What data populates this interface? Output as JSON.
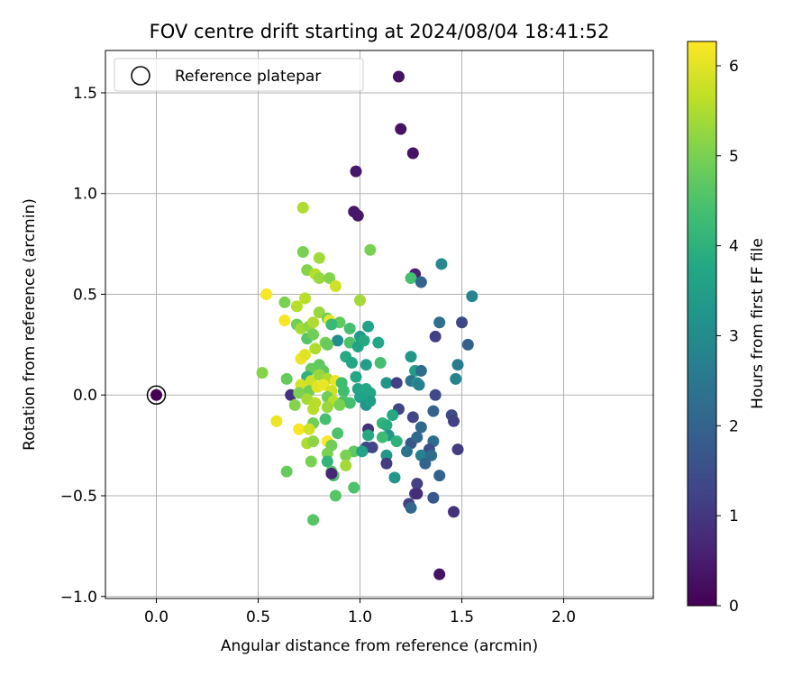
{
  "chart_data": {
    "type": "scatter",
    "title": "FOV centre drift starting at 2024/08/04 18:41:52",
    "xlabel": "Angular distance from reference (arcmin)",
    "ylabel": "Rotation from reference (arcmin)",
    "xlim": [
      -0.25,
      2.44
    ],
    "ylim": [
      -1.01,
      1.71
    ],
    "xticks": [
      0.0,
      0.5,
      1.0,
      1.5,
      2.0
    ],
    "xtick_labels": [
      "0.0",
      "0.5",
      "1.0",
      "1.5",
      "2.0"
    ],
    "yticks": [
      -1.0,
      -0.5,
      0.0,
      0.5,
      1.0,
      1.5
    ],
    "ytick_labels": [
      "−1.0",
      "−0.5",
      "0.0",
      "0.5",
      "1.0",
      "1.5"
    ],
    "grid": true,
    "legend": {
      "placement": "top-left",
      "entries": [
        "Reference platepar"
      ]
    },
    "reference_point": {
      "x": 0.0,
      "y": 0.0
    },
    "colorbar": {
      "label": "Hours from first FF file",
      "range": [
        0,
        6.27
      ],
      "ticks": [
        0,
        1,
        2,
        3,
        4,
        5,
        6
      ],
      "tick_labels": [
        "0",
        "1",
        "2",
        "3",
        "4",
        "5",
        "6"
      ],
      "colormap": "viridis"
    },
    "points": [
      [
        1.19,
        1.58,
        0.3
      ],
      [
        1.2,
        1.32,
        0.3
      ],
      [
        1.26,
        1.2,
        0.3
      ],
      [
        0.98,
        1.11,
        0.4
      ],
      [
        0.97,
        0.91,
        0.4
      ],
      [
        0.99,
        0.89,
        0.4
      ],
      [
        0.72,
        0.93,
        5.5
      ],
      [
        1.05,
        0.72,
        5.0
      ],
      [
        0.72,
        0.71,
        5.0
      ],
      [
        0.8,
        0.68,
        5.4
      ],
      [
        0.74,
        0.62,
        5.1
      ],
      [
        0.78,
        0.6,
        5.6
      ],
      [
        0.8,
        0.58,
        5.3
      ],
      [
        0.85,
        0.58,
        5.1
      ],
      [
        1.27,
        0.6,
        0.6
      ],
      [
        1.25,
        0.58,
        4.4
      ],
      [
        1.3,
        0.56,
        2.0
      ],
      [
        0.88,
        0.54,
        5.8
      ],
      [
        1.4,
        0.65,
        2.9
      ],
      [
        1.55,
        0.49,
        2.8
      ],
      [
        0.54,
        0.5,
        6.2
      ],
      [
        0.73,
        0.48,
        5.6
      ],
      [
        1.0,
        0.47,
        5.4
      ],
      [
        0.63,
        0.46,
        5.0
      ],
      [
        0.69,
        0.44,
        5.6
      ],
      [
        0.63,
        0.37,
        6.2
      ],
      [
        0.69,
        0.35,
        4.9
      ],
      [
        0.8,
        0.41,
        5.3
      ],
      [
        0.84,
        0.38,
        4.9
      ],
      [
        0.85,
        0.37,
        6.1
      ],
      [
        0.9,
        0.36,
        4.7
      ],
      [
        1.04,
        0.34,
        3.6
      ],
      [
        1.39,
        0.36,
        2.3
      ],
      [
        1.5,
        0.36,
        1.4
      ],
      [
        0.71,
        0.33,
        5.4
      ],
      [
        0.75,
        0.34,
        5.2
      ],
      [
        0.77,
        0.36,
        5.5
      ],
      [
        0.86,
        0.35,
        4.2
      ],
      [
        0.95,
        0.33,
        4.4
      ],
      [
        0.74,
        0.28,
        4.6
      ],
      [
        0.77,
        0.3,
        4.9
      ],
      [
        0.83,
        0.26,
        5.0
      ],
      [
        0.89,
        0.27,
        3.0
      ],
      [
        0.95,
        0.26,
        4.5
      ],
      [
        0.99,
        0.24,
        3.6
      ],
      [
        1.0,
        0.29,
        3.4
      ],
      [
        1.02,
        0.27,
        3.8
      ],
      [
        1.09,
        0.26,
        3.7
      ],
      [
        1.37,
        0.29,
        1.2
      ],
      [
        1.53,
        0.25,
        1.9
      ],
      [
        0.78,
        0.23,
        5.5
      ],
      [
        0.84,
        0.25,
        4.8
      ],
      [
        0.93,
        0.19,
        3.8
      ],
      [
        0.96,
        0.16,
        3.7
      ],
      [
        1.03,
        0.15,
        3.5
      ],
      [
        1.1,
        0.16,
        4.4
      ],
      [
        1.25,
        0.19,
        3.3
      ],
      [
        1.48,
        0.15,
        2.6
      ],
      [
        0.71,
        0.18,
        6.1
      ],
      [
        0.73,
        0.2,
        6.0
      ],
      [
        0.76,
        0.13,
        4.8
      ],
      [
        0.8,
        0.15,
        4.7
      ],
      [
        0.82,
        0.12,
        4.7
      ],
      [
        0.74,
        0.09,
        4.0
      ],
      [
        0.76,
        0.07,
        5.8
      ],
      [
        0.8,
        0.1,
        5.3
      ],
      [
        0.84,
        0.08,
        5.5
      ],
      [
        0.88,
        0.07,
        6.1
      ],
      [
        0.91,
        0.06,
        4.3
      ],
      [
        0.98,
        0.09,
        3.7
      ],
      [
        1.13,
        0.06,
        3.3
      ],
      [
        1.18,
        0.06,
        1.2
      ],
      [
        1.27,
        0.12,
        3.5
      ],
      [
        1.3,
        0.12,
        2.2
      ],
      [
        1.47,
        0.08,
        2.8
      ],
      [
        0.52,
        0.11,
        5.1
      ],
      [
        0.64,
        0.08,
        4.8
      ],
      [
        0.71,
        0.05,
        5.9
      ],
      [
        0.75,
        0.02,
        4.9
      ],
      [
        0.79,
        0.04,
        6.0
      ],
      [
        0.82,
        0.05,
        6.1
      ],
      [
        0.86,
        0.02,
        5.8
      ],
      [
        0.92,
        0.02,
        4.3
      ],
      [
        0.99,
        0.03,
        3.6
      ],
      [
        1.03,
        0.03,
        3.8
      ],
      [
        1.05,
        0.01,
        3.7
      ],
      [
        1.25,
        0.07,
        2.4
      ],
      [
        1.28,
        0.06,
        3.1
      ],
      [
        1.29,
        0.05,
        2.7
      ],
      [
        0.66,
        0.0,
        0.9
      ],
      [
        0.7,
        0.01,
        5.0
      ],
      [
        0.74,
        -0.02,
        5.4
      ],
      [
        0.78,
        -0.04,
        5.6
      ],
      [
        0.84,
        -0.01,
        4.9
      ],
      [
        0.87,
        -0.03,
        5.6
      ],
      [
        0.92,
        -0.03,
        4.5
      ],
      [
        0.95,
        -0.04,
        4.4
      ],
      [
        1.0,
        -0.01,
        3.6
      ],
      [
        1.03,
        -0.05,
        3.3
      ],
      [
        1.05,
        -0.03,
        3.5
      ],
      [
        1.37,
        0.0,
        1.4
      ],
      [
        0.68,
        -0.05,
        5.1
      ],
      [
        0.77,
        -0.07,
        5.6
      ],
      [
        0.84,
        -0.06,
        5.3
      ],
      [
        0.9,
        -0.05,
        5.0
      ],
      [
        1.19,
        -0.07,
        1.3
      ],
      [
        1.36,
        -0.08,
        2.0
      ],
      [
        1.45,
        -0.1,
        1.4
      ],
      [
        0.59,
        -0.13,
        6.1
      ],
      [
        0.77,
        -0.14,
        4.9
      ],
      [
        0.83,
        -0.12,
        4.4
      ],
      [
        1.11,
        -0.14,
        4.1
      ],
      [
        1.13,
        -0.15,
        3.9
      ],
      [
        1.16,
        -0.1,
        3.8
      ],
      [
        1.26,
        -0.11,
        1.3
      ],
      [
        1.46,
        -0.13,
        1.2
      ],
      [
        0.7,
        -0.17,
        6.2
      ],
      [
        0.75,
        -0.17,
        5.8
      ],
      [
        0.89,
        -0.19,
        4.5
      ],
      [
        1.04,
        -0.17,
        0.9
      ],
      [
        1.14,
        -0.2,
        3.3
      ],
      [
        1.3,
        -0.16,
        2.1
      ],
      [
        1.04,
        -0.2,
        3.8
      ],
      [
        1.11,
        -0.21,
        4.3
      ],
      [
        1.36,
        -0.23,
        2.2
      ],
      [
        0.74,
        -0.24,
        5.5
      ],
      [
        0.77,
        -0.23,
        5.2
      ],
      [
        0.84,
        -0.23,
        6.2
      ],
      [
        0.86,
        -0.25,
        4.9
      ],
      [
        0.97,
        -0.28,
        4.7
      ],
      [
        1.03,
        -0.26,
        1.4
      ],
      [
        1.06,
        -0.26,
        1.3
      ],
      [
        1.18,
        -0.23,
        4.0
      ],
      [
        1.25,
        -0.24,
        1.7
      ],
      [
        1.28,
        -0.21,
        2.1
      ],
      [
        1.34,
        -0.27,
        1.5
      ],
      [
        1.48,
        -0.27,
        1.1
      ],
      [
        0.84,
        -0.29,
        5.0
      ],
      [
        0.93,
        -0.3,
        5.0
      ],
      [
        1.01,
        -0.28,
        3.6
      ],
      [
        1.13,
        -0.3,
        3.3
      ],
      [
        1.23,
        -0.28,
        2.4
      ],
      [
        1.3,
        -0.3,
        2.7
      ],
      [
        1.35,
        -0.3,
        2.2
      ],
      [
        0.76,
        -0.33,
        5.0
      ],
      [
        0.84,
        -0.33,
        4.1
      ],
      [
        0.93,
        -0.35,
        5.4
      ],
      [
        1.13,
        -0.34,
        1.1
      ],
      [
        1.32,
        -0.34,
        2.0
      ],
      [
        0.64,
        -0.38,
        4.8
      ],
      [
        0.86,
        -0.38,
        4.6
      ],
      [
        0.87,
        -0.4,
        4.5
      ],
      [
        0.86,
        -0.39,
        0.7
      ],
      [
        1.17,
        -0.41,
        3.3
      ],
      [
        1.28,
        -0.44,
        1.2
      ],
      [
        1.39,
        -0.4,
        2.0
      ],
      [
        0.88,
        -0.5,
        4.6
      ],
      [
        0.97,
        -0.46,
        4.5
      ],
      [
        1.27,
        -0.49,
        1.1
      ],
      [
        1.28,
        -0.49,
        0.8
      ],
      [
        1.36,
        -0.51,
        1.7
      ],
      [
        1.24,
        -0.54,
        1.2
      ],
      [
        1.25,
        -0.56,
        2.1
      ],
      [
        1.46,
        -0.58,
        0.9
      ],
      [
        0.77,
        -0.62,
        4.6
      ],
      [
        1.39,
        -0.89,
        0.3
      ]
    ]
  }
}
